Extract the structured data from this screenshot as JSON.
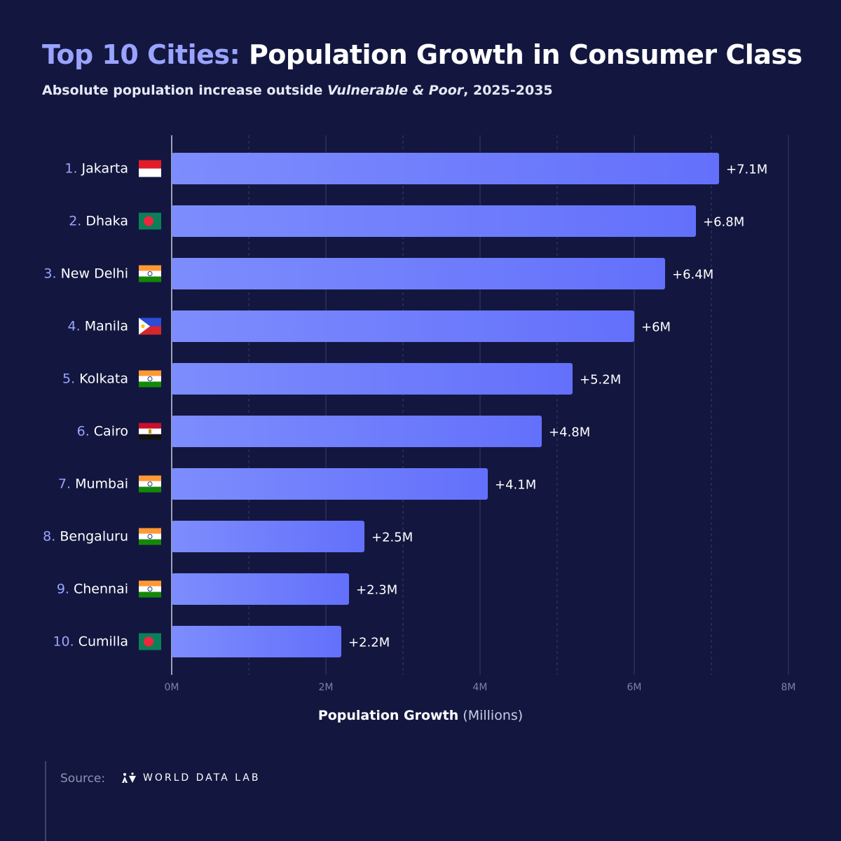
{
  "header": {
    "title_accent": "Top 10 Cities:",
    "title_main": "Population Growth in Consumer Class",
    "subtitle_pre": "Absolute population increase outside ",
    "subtitle_em": "Vulnerable & Poor",
    "subtitle_post": ", 2025-2035"
  },
  "axis": {
    "xlabel_bold": "Population Growth",
    "xlabel_unit": "(Millions)"
  },
  "footer": {
    "source_label": "Source:",
    "brand": "WORLD DATA LAB"
  },
  "colors": {
    "background": "#13173f",
    "bar_start": "#7d8dfd",
    "bar_end": "#6370fb",
    "rank": "#9aa3ff",
    "grid": "#2a2f5e"
  },
  "chart_data": {
    "type": "bar",
    "orientation": "horizontal",
    "categories": [
      "Jakarta",
      "Dhaka",
      "New Delhi",
      "Manila",
      "Kolkata",
      "Cairo",
      "Mumbai",
      "Bengaluru",
      "Chennai",
      "Cumilla"
    ],
    "ranks": [
      "1.",
      "2.",
      "3.",
      "4.",
      "5.",
      "6.",
      "7.",
      "8.",
      "9.",
      "10."
    ],
    "flags": [
      "indonesia-flag",
      "bangladesh-flag",
      "india-flag",
      "philippines-flag",
      "india-flag",
      "egypt-flag",
      "india-flag",
      "india-flag",
      "india-flag",
      "bangladesh-flag"
    ],
    "values": [
      7.1,
      6.8,
      6.4,
      6.0,
      5.2,
      4.8,
      4.1,
      2.5,
      2.3,
      2.2
    ],
    "value_labels": [
      "+7.1M",
      "+6.8M",
      "+6.4M",
      "+6M",
      "+5.2M",
      "+4.8M",
      "+4.1M",
      "+2.5M",
      "+2.3M",
      "+2.2M"
    ],
    "xlim": [
      0,
      8
    ],
    "xticks": [
      0,
      2,
      4,
      6,
      8
    ],
    "xtick_labels": [
      "0M",
      "2M",
      "4M",
      "6M",
      "8M"
    ],
    "minor_grid": [
      1,
      3,
      5,
      7
    ],
    "grid": true
  }
}
